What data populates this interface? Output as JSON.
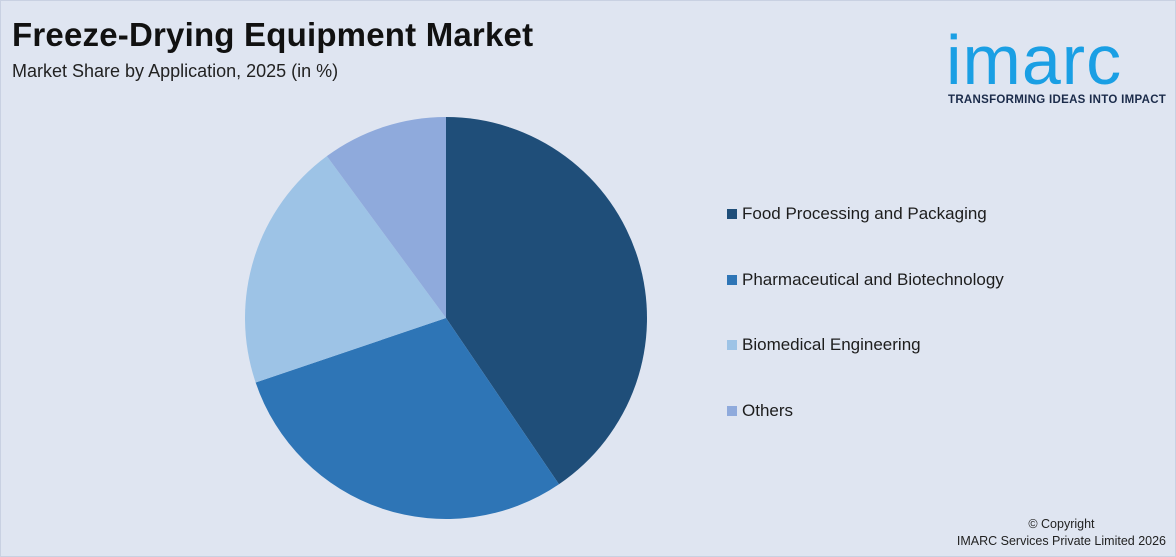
{
  "header": {
    "title": "Freeze-Drying Equipment Market",
    "subtitle": "Market Share by Application, 2025 (in %)"
  },
  "logo": {
    "wordmark": "imarc",
    "tagline": "TRANSFORMING IDEAS INTO IMPACT"
  },
  "footer": {
    "copyright_line1": "© Copyright",
    "copyright_line2": "IMARC Services Private Limited 2026"
  },
  "colors": {
    "background": "#dfe5f1",
    "brand": "#1a9fe4"
  },
  "chart_data": {
    "type": "pie",
    "title": "Freeze-Drying Equipment Market",
    "subtitle": "Market Share by Application, 2025 (in %)",
    "legend_position": "right",
    "categories": [
      "Food Processing and Packaging",
      "Pharmaceutical and Biotechnology",
      "Biomedical Engineering",
      "Others"
    ],
    "values": [
      40.5,
      29.3,
      20.1,
      10.1
    ],
    "colors": [
      "#1f4e79",
      "#2e75b6",
      "#9dc3e6",
      "#8faadc"
    ]
  }
}
